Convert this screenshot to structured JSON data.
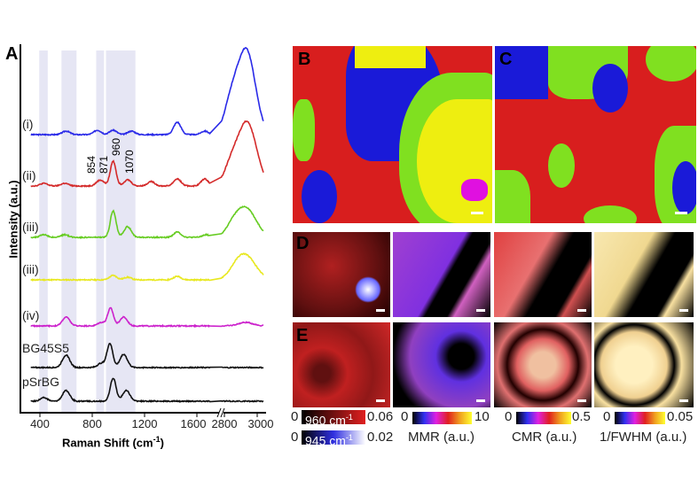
{
  "panel_a": {
    "label": "A",
    "xlabel": "Raman Shift (cm",
    "xlabel_sup": "-1",
    "xlabel_end": ")",
    "ylabel": "Intensity (a.u.)",
    "ticks": [
      "400",
      "800",
      "1200",
      "1600",
      "2800",
      "3000"
    ],
    "tick_values": [
      400,
      800,
      1200,
      1600,
      2800,
      3000
    ],
    "bands": [
      [
        395,
        460
      ],
      [
        565,
        680
      ],
      [
        830,
        890
      ],
      [
        905,
        1130
      ]
    ],
    "annotations": [
      "854",
      "871",
      "960",
      "1070"
    ],
    "series": [
      {
        "name": "(i)",
        "color": "#2a2ae8",
        "peaks": [
          [
            600,
            4
          ],
          [
            840,
            5
          ],
          [
            960,
            5
          ],
          [
            1100,
            4
          ],
          [
            1450,
            14
          ],
          [
            1660,
            4
          ],
          [
            2850,
            45
          ],
          [
            2930,
            75
          ],
          [
            2980,
            25
          ]
        ]
      },
      {
        "name": "(ii)",
        "color": "#d42a2a",
        "peaks": [
          [
            430,
            3
          ],
          [
            590,
            3
          ],
          [
            854,
            4
          ],
          [
            871,
            3
          ],
          [
            960,
            28
          ],
          [
            1070,
            7
          ],
          [
            1250,
            5
          ],
          [
            1450,
            8
          ],
          [
            1660,
            8
          ],
          [
            2850,
            30
          ],
          [
            2930,
            55
          ],
          [
            2985,
            25
          ]
        ]
      },
      {
        "name": "(iii)",
        "color": "#66cc22",
        "peaks": [
          [
            430,
            3
          ],
          [
            590,
            3
          ],
          [
            960,
            30
          ],
          [
            1070,
            12
          ],
          [
            1450,
            6
          ],
          [
            1670,
            3
          ],
          [
            2860,
            18
          ],
          [
            2930,
            25
          ],
          [
            2990,
            10
          ]
        ]
      },
      {
        "name": "(iii)",
        "color": "#e8e820",
        "peaks": [
          [
            960,
            5
          ],
          [
            1070,
            3
          ],
          [
            1450,
            4
          ],
          [
            2870,
            14
          ],
          [
            2930,
            20
          ],
          [
            2990,
            8
          ]
        ]
      },
      {
        "name": "(iv)",
        "color": "#cc22cc",
        "peaks": [
          [
            600,
            10
          ],
          [
            870,
            4
          ],
          [
            940,
            20
          ],
          [
            1040,
            10
          ],
          [
            2930,
            4
          ]
        ]
      },
      {
        "name": "BG45S5",
        "color": "#111111",
        "peaks": [
          [
            600,
            14
          ],
          [
            870,
            5
          ],
          [
            935,
            27
          ],
          [
            1040,
            15
          ]
        ]
      },
      {
        "name": "pSrBG",
        "color": "#111111",
        "peaks": [
          [
            430,
            4
          ],
          [
            600,
            12
          ],
          [
            960,
            26
          ],
          [
            1060,
            12
          ]
        ]
      }
    ]
  },
  "panel_b": {
    "label": "B"
  },
  "panel_c": {
    "label": "C"
  },
  "panel_d": {
    "label": "D"
  },
  "panel_e": {
    "label": "E"
  },
  "colorbars": {
    "intensity_960": {
      "min": "0",
      "max": "0.06",
      "label": "960 cm",
      "sup": "-1"
    },
    "intensity_945": {
      "min": "0",
      "max": "0.02",
      "label": "945 cm",
      "sup": "-1"
    },
    "mmr": {
      "min": "0",
      "max": "10",
      "title": "MMR (a.u.)"
    },
    "cmr": {
      "min": "0",
      "max": "0.5",
      "title": "CMR (a.u.)"
    },
    "fwhm": {
      "min": "0",
      "max": "0.05",
      "title": "1/FWHM (a.u.)"
    }
  }
}
